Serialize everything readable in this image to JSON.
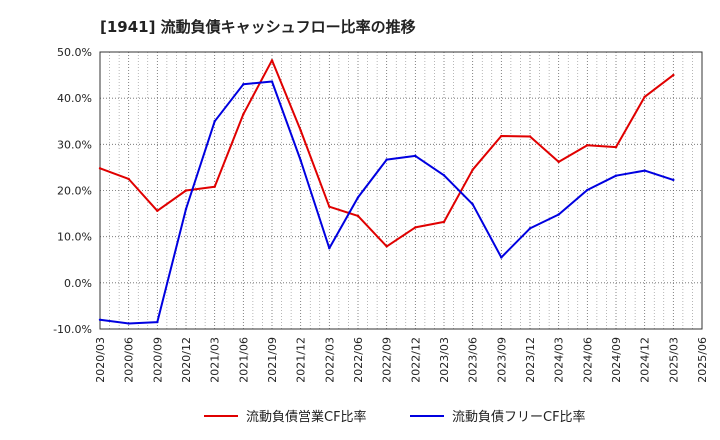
{
  "chart_data": {
    "type": "line",
    "title": "[1941]  流動負債キャッシュフロー比率の推移",
    "xlabel": "",
    "ylabel": "",
    "ylim": [
      -10,
      50
    ],
    "y_ticks": [
      "50.0%",
      "40.0%",
      "30.0%",
      "20.0%",
      "10.0%",
      "0.0%",
      "-10.0%"
    ],
    "y_tick_values": [
      50,
      40,
      30,
      20,
      10,
      0,
      -10
    ],
    "x": [
      "2020/03",
      "2020/06",
      "2020/09",
      "2020/12",
      "2021/03",
      "2021/06",
      "2021/09",
      "2021/12",
      "2022/03",
      "2022/06",
      "2022/09",
      "2022/12",
      "2023/03",
      "2023/06",
      "2023/09",
      "2023/12",
      "2024/03",
      "2024/06",
      "2024/09",
      "2024/12",
      "2025/03",
      "2025/06"
    ],
    "grid": true,
    "legend_position": "bottom",
    "series": [
      {
        "name": "流動負債営業CF比率",
        "color": "#e00000",
        "values": [
          24.8,
          22.5,
          15.6,
          20.0,
          20.8,
          36.5,
          48.2,
          33.0,
          16.5,
          14.5,
          7.9,
          12.0,
          13.2,
          24.5,
          31.8,
          31.7,
          26.2,
          29.8,
          29.4,
          40.3,
          45.0,
          null
        ]
      },
      {
        "name": "流動負債フリーCF比率",
        "color": "#0000e0",
        "values": [
          -8.0,
          -8.8,
          -8.5,
          16.0,
          35.0,
          43.0,
          43.6,
          26.5,
          7.5,
          18.5,
          26.7,
          27.5,
          23.3,
          17.0,
          5.5,
          11.8,
          14.8,
          20.1,
          23.2,
          24.3,
          22.3,
          null
        ]
      }
    ]
  }
}
